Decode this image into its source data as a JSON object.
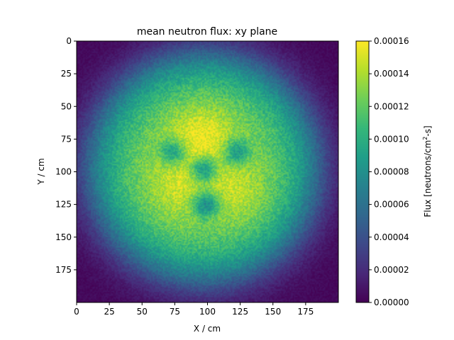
{
  "chart_data": {
    "type": "heatmap",
    "title": "mean neutron flux: xy plane",
    "xlabel": "X / cm",
    "ylabel": "Y / cm",
    "colorbar_label": "Flux [neutrons/cm²-s]",
    "colorbar_label_parts": [
      "Flux [neutrons/cm",
      "2",
      "-s]"
    ],
    "colormap": "viridis",
    "colormap_stops": [
      "#440154",
      "#482878",
      "#3e4989",
      "#31688e",
      "#26828e",
      "#1f9e89",
      "#35b779",
      "#6ece58",
      "#b5de2b",
      "#fde725"
    ],
    "grid_size": [
      200,
      200
    ],
    "xlim": [
      0,
      200
    ],
    "ylim": [
      200,
      0
    ],
    "y_axis_inverted": true,
    "x_ticks": [
      0,
      25,
      50,
      75,
      100,
      125,
      150,
      175
    ],
    "x_tick_labels": [
      "0",
      "25",
      "50",
      "75",
      "100",
      "125",
      "150",
      "175"
    ],
    "y_ticks": [
      0,
      25,
      50,
      75,
      100,
      125,
      150,
      175
    ],
    "y_tick_labels": [
      "0",
      "25",
      "50",
      "75",
      "100",
      "125",
      "150",
      "175"
    ],
    "color_range": [
      0.0,
      0.00016
    ],
    "colorbar_ticks": [
      0.0,
      2e-05,
      4e-05,
      6e-05,
      8e-05,
      0.0001,
      0.00012,
      0.00014,
      0.00016
    ],
    "colorbar_tick_labels": [
      "0.00000",
      "0.00002",
      "0.00004",
      "0.00006",
      "0.00008",
      "0.00010",
      "0.00012",
      "0.00014",
      "0.00016"
    ],
    "field": {
      "center": [
        97,
        97
      ],
      "core_radius": 90,
      "edge_width": 10,
      "background_value": 3e-06,
      "peak_value": 0.000135,
      "noise_amplitude": 2e-05
    },
    "hot_spots": [
      {
        "x": 95,
        "y": 73,
        "value": 0.00014
      },
      {
        "x": 75,
        "y": 113,
        "value": 0.00013
      },
      {
        "x": 125,
        "y": 118,
        "value": 0.00013
      }
    ],
    "cold_spots": [
      {
        "x": 74,
        "y": 85,
        "value": 7e-05
      },
      {
        "x": 122,
        "y": 85,
        "value": 7e-05
      },
      {
        "x": 97,
        "y": 98,
        "value": 6e-05
      },
      {
        "x": 99,
        "y": 125,
        "value": 6e-05
      }
    ]
  }
}
